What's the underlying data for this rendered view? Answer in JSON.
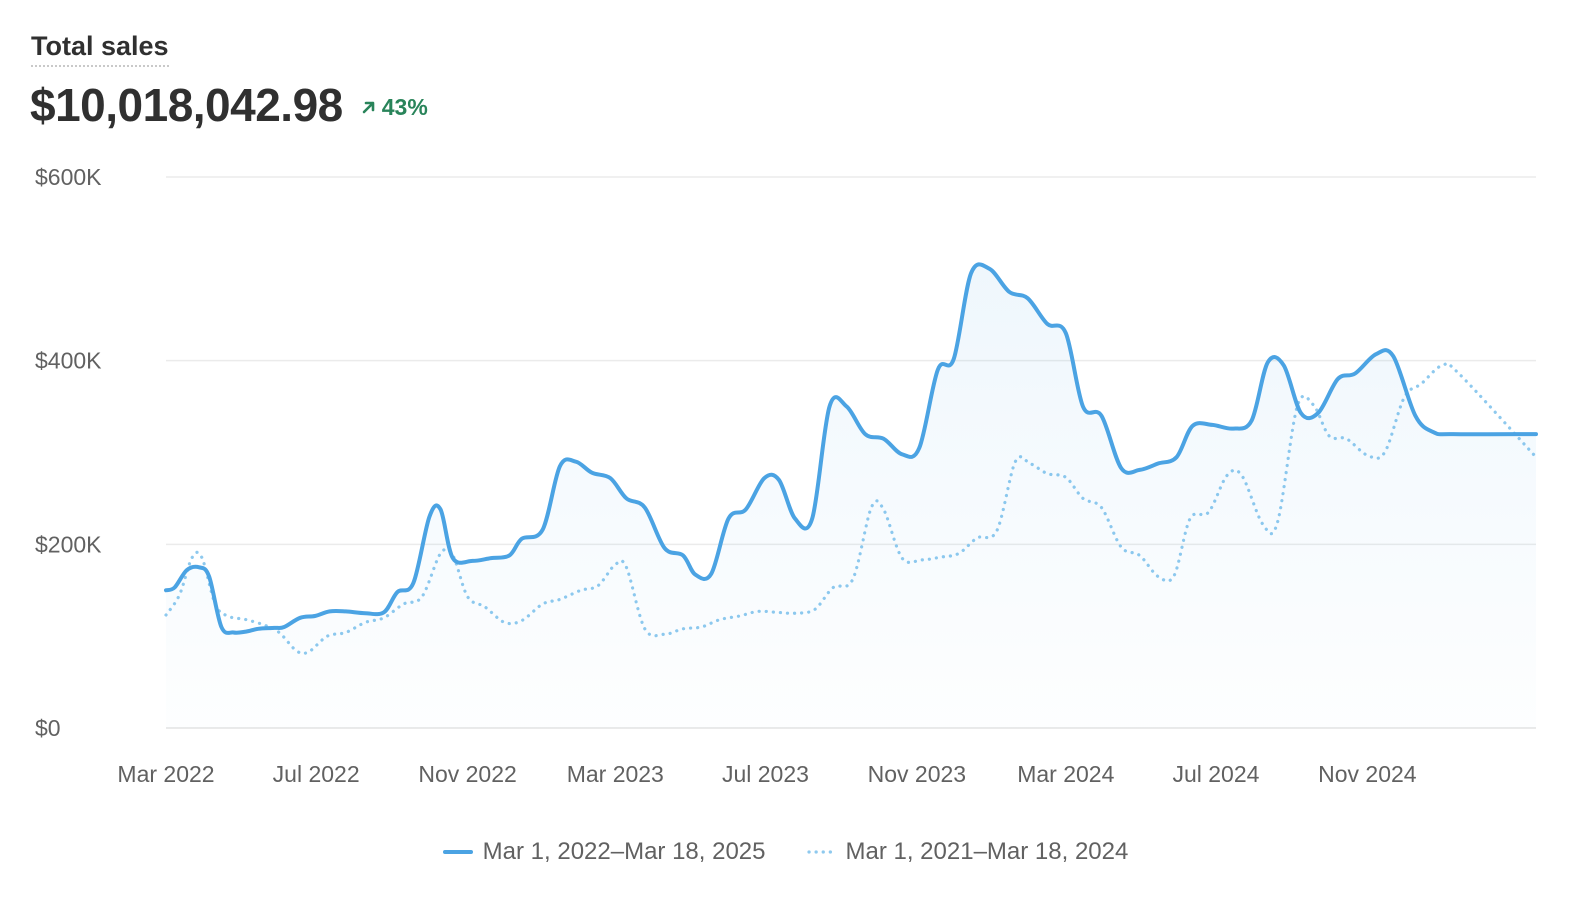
{
  "header": {
    "title": "Total sales",
    "total": "$10,018,042.98",
    "change": "43%",
    "change_direction": "up",
    "change_icon": "arrow-up-right-icon"
  },
  "colors": {
    "primary": "#4ba3e3",
    "comparison": "#8ec9ee",
    "positive": "#29845a",
    "grid": "#e8e8e8"
  },
  "chart_data": {
    "type": "area",
    "title": "Total sales",
    "xlabel": "",
    "ylabel": "",
    "ylim": [
      0,
      600000
    ],
    "xlim": [
      "2022-03-01",
      "2025-03-18"
    ],
    "yticks": [
      {
        "value": 0,
        "label": "$0"
      },
      {
        "value": 200000,
        "label": "$200K"
      },
      {
        "value": 400000,
        "label": "$400K"
      },
      {
        "value": 600000,
        "label": "$600K"
      }
    ],
    "xticks": [
      {
        "value": "2022-03-01",
        "label": "Mar 2022"
      },
      {
        "value": "2022-07-01",
        "label": "Jul 2022"
      },
      {
        "value": "2022-11-01",
        "label": "Nov 2022"
      },
      {
        "value": "2023-03-01",
        "label": "Mar 2023"
      },
      {
        "value": "2023-07-01",
        "label": "Jul 2023"
      },
      {
        "value": "2023-11-01",
        "label": "Nov 2023"
      },
      {
        "value": "2024-03-01",
        "label": "Mar 2024"
      },
      {
        "value": "2024-07-01",
        "label": "Jul 2024"
      },
      {
        "value": "2024-11-01",
        "label": "Nov 2024"
      }
    ],
    "grid": true,
    "legend_position": "bottom-center",
    "series": [
      {
        "name": "Mar 1, 2022–Mar 18, 2025",
        "style": "solid",
        "color": "#4ba3e3",
        "filled": true,
        "points": [
          [
            "2022-03-01",
            150000
          ],
          [
            "2022-03-08",
            153000
          ],
          [
            "2022-03-18",
            172000
          ],
          [
            "2022-03-28",
            175000
          ],
          [
            "2022-04-05",
            165000
          ],
          [
            "2022-04-15",
            110000
          ],
          [
            "2022-04-25",
            104000
          ],
          [
            "2022-05-05",
            105000
          ],
          [
            "2022-05-15",
            108000
          ],
          [
            "2022-05-28",
            109000
          ],
          [
            "2022-06-05",
            110000
          ],
          [
            "2022-06-18",
            120000
          ],
          [
            "2022-06-30",
            122000
          ],
          [
            "2022-07-12",
            127000
          ],
          [
            "2022-07-25",
            127000
          ],
          [
            "2022-08-10",
            125000
          ],
          [
            "2022-08-25",
            126000
          ],
          [
            "2022-09-05",
            148000
          ],
          [
            "2022-09-18",
            158000
          ],
          [
            "2022-10-01",
            230000
          ],
          [
            "2022-10-10",
            238000
          ],
          [
            "2022-10-20",
            185000
          ],
          [
            "2022-11-05",
            182000
          ],
          [
            "2022-11-20",
            185000
          ],
          [
            "2022-12-05",
            188000
          ],
          [
            "2022-12-15",
            206000
          ],
          [
            "2023-01-01",
            216000
          ],
          [
            "2023-01-15",
            285000
          ],
          [
            "2023-01-28",
            290000
          ],
          [
            "2023-02-10",
            278000
          ],
          [
            "2023-02-25",
            272000
          ],
          [
            "2023-03-10",
            250000
          ],
          [
            "2023-03-25",
            240000
          ],
          [
            "2023-04-10",
            196000
          ],
          [
            "2023-04-25",
            188000
          ],
          [
            "2023-05-05",
            167000
          ],
          [
            "2023-05-18",
            168000
          ],
          [
            "2023-06-01",
            228000
          ],
          [
            "2023-06-15",
            238000
          ],
          [
            "2023-06-30",
            272000
          ],
          [
            "2023-07-12",
            270000
          ],
          [
            "2023-07-25",
            228000
          ],
          [
            "2023-08-08",
            228000
          ],
          [
            "2023-08-22",
            350000
          ],
          [
            "2023-09-05",
            350000
          ],
          [
            "2023-09-20",
            320000
          ],
          [
            "2023-10-05",
            315000
          ],
          [
            "2023-10-20",
            298000
          ],
          [
            "2023-11-03",
            305000
          ],
          [
            "2023-11-18",
            390000
          ],
          [
            "2023-12-01",
            402000
          ],
          [
            "2023-12-15",
            495000
          ],
          [
            "2023-12-30",
            500000
          ],
          [
            "2024-01-15",
            475000
          ],
          [
            "2024-01-30",
            468000
          ],
          [
            "2024-02-15",
            440000
          ],
          [
            "2024-03-01",
            430000
          ],
          [
            "2024-03-15",
            350000
          ],
          [
            "2024-03-30",
            340000
          ],
          [
            "2024-04-15",
            283000
          ],
          [
            "2024-04-30",
            281000
          ],
          [
            "2024-05-15",
            288000
          ],
          [
            "2024-05-30",
            295000
          ],
          [
            "2024-06-12",
            329000
          ],
          [
            "2024-06-28",
            330000
          ],
          [
            "2024-07-15",
            326000
          ],
          [
            "2024-07-30",
            335000
          ],
          [
            "2024-08-12",
            398000
          ],
          [
            "2024-08-25",
            395000
          ],
          [
            "2024-09-08",
            343000
          ],
          [
            "2024-09-22",
            343000
          ],
          [
            "2024-10-08",
            380000
          ],
          [
            "2024-10-22",
            386000
          ],
          [
            "2024-11-08",
            407000
          ],
          [
            "2024-11-22",
            405000
          ],
          [
            "2024-12-10",
            340000
          ],
          [
            "2024-12-25",
            322000
          ],
          [
            "2025-01-10",
            320000
          ],
          [
            "2025-03-18",
            320000
          ]
        ]
      },
      {
        "name": "Mar 1, 2021–Mar 18, 2024",
        "style": "dotted",
        "color": "#8ec9ee",
        "filled": false,
        "points": [
          [
            "2022-03-01",
            123000
          ],
          [
            "2022-03-12",
            145000
          ],
          [
            "2022-03-22",
            185000
          ],
          [
            "2022-03-30",
            186000
          ],
          [
            "2022-04-10",
            135000
          ],
          [
            "2022-04-20",
            122000
          ],
          [
            "2022-05-05",
            118000
          ],
          [
            "2022-05-20",
            112000
          ],
          [
            "2022-06-01",
            104000
          ],
          [
            "2022-06-15",
            84000
          ],
          [
            "2022-06-25",
            83000
          ],
          [
            "2022-07-10",
            100000
          ],
          [
            "2022-07-25",
            104000
          ],
          [
            "2022-08-10",
            115000
          ],
          [
            "2022-08-25",
            120000
          ],
          [
            "2022-09-10",
            135000
          ],
          [
            "2022-09-25",
            143000
          ],
          [
            "2022-10-10",
            190000
          ],
          [
            "2022-10-20",
            188000
          ],
          [
            "2022-11-01",
            143000
          ],
          [
            "2022-11-15",
            132000
          ],
          [
            "2022-12-01",
            115000
          ],
          [
            "2022-12-15",
            117000
          ],
          [
            "2023-01-01",
            135000
          ],
          [
            "2023-01-15",
            140000
          ],
          [
            "2023-02-01",
            150000
          ],
          [
            "2023-02-15",
            155000
          ],
          [
            "2023-03-01",
            178000
          ],
          [
            "2023-03-10",
            175000
          ],
          [
            "2023-03-25",
            108000
          ],
          [
            "2023-04-10",
            102000
          ],
          [
            "2023-04-25",
            108000
          ],
          [
            "2023-05-10",
            110000
          ],
          [
            "2023-05-25",
            118000
          ],
          [
            "2023-06-10",
            122000
          ],
          [
            "2023-06-25",
            127000
          ],
          [
            "2023-07-10",
            126000
          ],
          [
            "2023-07-25",
            125000
          ],
          [
            "2023-08-10",
            129000
          ],
          [
            "2023-08-25",
            153000
          ],
          [
            "2023-09-10",
            162000
          ],
          [
            "2023-09-25",
            240000
          ],
          [
            "2023-10-05",
            238000
          ],
          [
            "2023-10-20",
            185000
          ],
          [
            "2023-11-05",
            183000
          ],
          [
            "2023-11-20",
            186000
          ],
          [
            "2023-12-05",
            190000
          ],
          [
            "2023-12-20",
            207000
          ],
          [
            "2024-01-05",
            215000
          ],
          [
            "2024-01-20",
            290000
          ],
          [
            "2024-02-01",
            288000
          ],
          [
            "2024-02-15",
            277000
          ],
          [
            "2024-03-01",
            273000
          ],
          [
            "2024-03-15",
            250000
          ],
          [
            "2024-03-30",
            240000
          ],
          [
            "2024-04-15",
            197000
          ],
          [
            "2024-04-30",
            188000
          ],
          [
            "2024-05-15",
            165000
          ],
          [
            "2024-05-28",
            166000
          ],
          [
            "2024-06-10",
            228000
          ],
          [
            "2024-06-25",
            235000
          ],
          [
            "2024-07-10",
            275000
          ],
          [
            "2024-07-22",
            275000
          ],
          [
            "2024-08-08",
            222000
          ],
          [
            "2024-08-20",
            224000
          ],
          [
            "2024-09-05",
            350000
          ],
          [
            "2024-09-18",
            352000
          ],
          [
            "2024-10-01",
            318000
          ],
          [
            "2024-10-15",
            315000
          ],
          [
            "2024-11-01",
            297000
          ],
          [
            "2024-11-15",
            300000
          ],
          [
            "2024-12-01",
            360000
          ],
          [
            "2024-12-15",
            375000
          ],
          [
            "2025-01-01",
            395000
          ],
          [
            "2025-01-15",
            385000
          ],
          [
            "2025-03-18",
            295000
          ]
        ]
      }
    ]
  }
}
